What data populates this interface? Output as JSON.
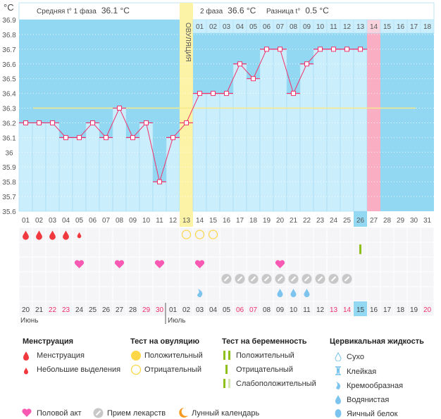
{
  "header": {
    "unit": "°C",
    "phase1_label": "Средняя t° 1 фаза",
    "phase1_value": "36.1 °C",
    "phase2_label": "2 фаза",
    "phase2_value": "36.6 °C",
    "diff_label": "Разница t°",
    "diff_value": "0.5 °C",
    "ovulation_label": "ОВУЛЯЦИЯ"
  },
  "chart_data": {
    "type": "line",
    "ylabel": "°C",
    "ylim": [
      35.6,
      36.9
    ],
    "yticks": [
      "36.9",
      "36.8",
      "36.7",
      "36.6",
      "36.5",
      "36.4",
      "36.3",
      "36.2",
      "36.1",
      "36",
      "35.9",
      "35.8",
      "35.7",
      "35.6"
    ],
    "cycle_days": [
      "01",
      "02",
      "03",
      "04",
      "05",
      "06",
      "07",
      "08",
      "09",
      "10",
      "11",
      "12",
      "13",
      "14",
      "15",
      "16",
      "17",
      "18",
      "19",
      "20",
      "21",
      "22",
      "23",
      "24",
      "25",
      "26",
      "27",
      "28",
      "29",
      "30",
      "31"
    ],
    "temperatures": [
      36.2,
      36.2,
      36.2,
      36.1,
      36.1,
      36.2,
      36.1,
      36.3,
      36.1,
      36.2,
      35.8,
      36.1,
      36.2,
      36.4,
      36.4,
      36.4,
      36.6,
      36.5,
      36.7,
      36.7,
      36.4,
      36.6,
      36.7,
      36.7,
      36.7,
      36.7
    ],
    "cover_line": 36.3,
    "ovulation_day": 13,
    "expected_period_day": 27,
    "today_day": 26,
    "phase2_days": [
      "01",
      "02",
      "03",
      "04",
      "05",
      "06",
      "07",
      "08",
      "09",
      "10",
      "11",
      "12",
      "13",
      "14",
      "15",
      "16",
      "17",
      "18"
    ],
    "calendar_dates": [
      "20",
      "21",
      "22",
      "23",
      "24",
      "25",
      "26",
      "27",
      "28",
      "29",
      "30",
      "01",
      "02",
      "03",
      "04",
      "05",
      "06",
      "07",
      "08",
      "09",
      "10",
      "11",
      "12",
      "13",
      "14",
      "15",
      "16",
      "17",
      "18",
      "19",
      "20"
    ],
    "weekend_indexes": [
      3,
      4,
      10,
      11,
      17,
      18,
      24,
      25,
      31
    ],
    "months": [
      {
        "label": "Июнь",
        "start_day": 1
      },
      {
        "label": "Июль",
        "start_day": 12
      }
    ],
    "colors": {
      "background": "#93d8f2",
      "bar": "#cbeefc",
      "line": "#f0306a",
      "ovulation": "#fdf3a6",
      "period": "#f9aec4",
      "cover": "#f7e98a",
      "weekend": "#f0306a"
    },
    "markers": {
      "menstruation": {
        "1": "heavy",
        "2": "heavy",
        "3": "heavy",
        "4": "heavy",
        "5": "spotting"
      },
      "ovulation_test": {
        "13": "negative",
        "14": "negative",
        "15": "negative"
      },
      "pregnancy_test": {
        "26": "negative"
      },
      "intercourse": [
        5,
        8,
        11,
        14,
        20
      ],
      "medication": [
        16,
        17,
        18,
        19,
        20,
        21,
        22,
        23,
        24,
        25
      ],
      "cervical_fluid": {
        "14": "creamy",
        "20": "watery",
        "21": "watery",
        "22": "watery"
      }
    }
  },
  "legend": {
    "menstruation": {
      "title": "Менструация",
      "items": [
        "Менструация",
        "Небольшие выделения"
      ]
    },
    "ovulation_test": {
      "title": "Тест на овуляцию",
      "items": [
        "Положительный",
        "Отрицательный"
      ]
    },
    "pregnancy_test": {
      "title": "Тест на беременность",
      "items": [
        "Положительный",
        "Отрицательный",
        "Слабоположительный"
      ]
    },
    "cervical_fluid": {
      "title": "Цервикальная жидкость",
      "items": [
        "Сухо",
        "Клейкая",
        "Кремообразная",
        "Водянистая",
        "Яичный белок"
      ]
    },
    "other": [
      "Половой акт",
      "Прием лекарств",
      "Лунный календарь"
    ]
  }
}
